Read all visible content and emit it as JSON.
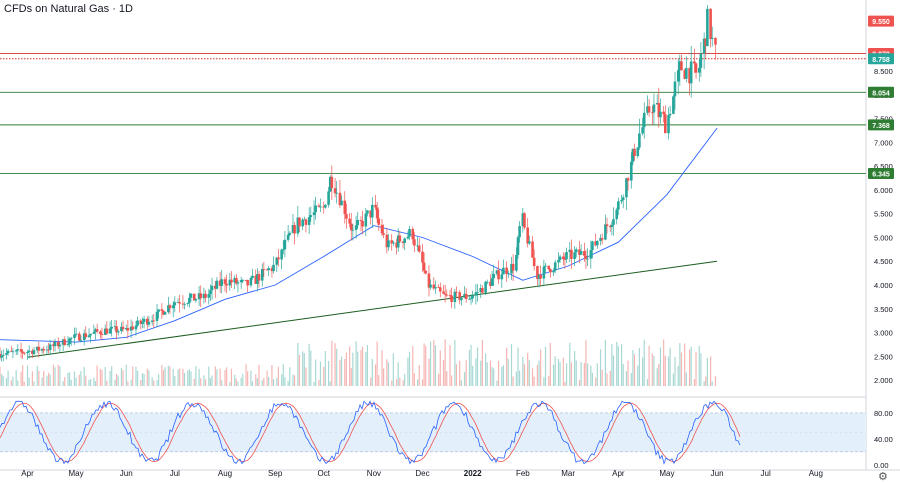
{
  "title": "CFDs on Natural Gas · 1D",
  "colors": {
    "up": "#26a69a",
    "down": "#ef5350",
    "ma": "#2962ff",
    "trendline": "#1b5e20",
    "green_level": "#2e7d32",
    "red_level": "#d32f2f",
    "k_line": "#2962ff",
    "d_line": "#ef5350",
    "osc_band": "#e3f0fc"
  },
  "icons": {
    "settings": "gear-icon"
  },
  "chart_data": {
    "type": "candlestick",
    "price_axis": {
      "ticks": [
        "2.000",
        "2.500",
        "3.000",
        "3.500",
        "4.000",
        "4.500",
        "5.000",
        "5.500",
        "6.000",
        "6.500",
        "7.000",
        "7.500",
        "8.000",
        "8.500"
      ],
      "ylim": [
        1.75,
        9.7
      ]
    },
    "time_axis": {
      "labels": [
        "Apr",
        "May",
        "Jun",
        "Jul",
        "Aug",
        "Sep",
        "Oct",
        "Nov",
        "Dec",
        "2022",
        "Feb",
        "Mar",
        "Apr",
        "May",
        "Jun",
        "Jul",
        "Aug"
      ],
      "start_month": "2021-03-15",
      "end_month": "2022-09-01"
    },
    "price_labels": [
      {
        "value": "9.550",
        "y": 9.55,
        "color": "#ef5350"
      },
      {
        "value": "8.870",
        "y": 8.87,
        "color": "#ef5350"
      },
      {
        "value": "8.758",
        "y": 8.758,
        "color": "#26a69a"
      },
      {
        "value": "8.054",
        "y": 8.054,
        "color": "#2e7d32"
      },
      {
        "value": "7.368",
        "y": 7.368,
        "color": "#2e7d32"
      },
      {
        "value": "6.345",
        "y": 6.345,
        "color": "#2e7d32"
      }
    ],
    "levels": [
      {
        "y": 8.87,
        "style": "solid",
        "color": "#d32f2f"
      },
      {
        "y": 8.758,
        "style": "dotted",
        "color": "#d32f2f"
      },
      {
        "y": 8.054,
        "style": "solid",
        "color": "#2e7d32"
      },
      {
        "y": 7.368,
        "style": "solid",
        "color": "#2e7d32"
      },
      {
        "y": 6.345,
        "style": "solid",
        "color": "#2e7d32"
      }
    ],
    "trendline": {
      "from": [
        "2021-04-01",
        2.48
      ],
      "to": [
        "2022-06-01",
        4.5
      ]
    },
    "close_path": [
      [
        "2021-03-15",
        2.55
      ],
      [
        "2021-04-01",
        2.6
      ],
      [
        "2021-04-15",
        2.68
      ],
      [
        "2021-05-01",
        2.9
      ],
      [
        "2021-05-20",
        3.05
      ],
      [
        "2021-06-01",
        3.05
      ],
      [
        "2021-06-20",
        3.35
      ],
      [
        "2021-07-01",
        3.65
      ],
      [
        "2021-07-20",
        3.75
      ],
      [
        "2021-08-01",
        4.1
      ],
      [
        "2021-08-15",
        4.0
      ],
      [
        "2021-09-01",
        4.4
      ],
      [
        "2021-09-15",
        5.3
      ],
      [
        "2021-10-01",
        5.6
      ],
      [
        "2021-10-06",
        6.3
      ],
      [
        "2021-10-20",
        5.1
      ],
      [
        "2021-11-01",
        5.6
      ],
      [
        "2021-11-10",
        4.8
      ],
      [
        "2021-11-25",
        5.1
      ],
      [
        "2021-12-05",
        4.0
      ],
      [
        "2021-12-15",
        3.75
      ],
      [
        "2022-01-01",
        3.75
      ],
      [
        "2022-01-20",
        4.3
      ],
      [
        "2022-01-27",
        4.4
      ],
      [
        "2022-02-01",
        5.4
      ],
      [
        "2022-02-10",
        4.2
      ],
      [
        "2022-02-20",
        4.4
      ],
      [
        "2022-03-01",
        4.6
      ],
      [
        "2022-03-15",
        4.7
      ],
      [
        "2022-04-01",
        5.6
      ],
      [
        "2022-04-15",
        7.2
      ],
      [
        "2022-04-22",
        7.8
      ],
      [
        "2022-05-01",
        7.4
      ],
      [
        "2022-05-10",
        8.6
      ],
      [
        "2022-05-20",
        8.4
      ],
      [
        "2022-05-27",
        9.55
      ],
      [
        "2022-06-01",
        8.75
      ]
    ],
    "ma_path": [
      [
        "2021-03-15",
        2.85
      ],
      [
        "2021-05-01",
        2.8
      ],
      [
        "2021-06-01",
        2.9
      ],
      [
        "2021-07-01",
        3.25
      ],
      [
        "2021-08-01",
        3.7
      ],
      [
        "2021-09-01",
        4.0
      ],
      [
        "2021-10-01",
        4.6
      ],
      [
        "2021-11-01",
        5.25
      ],
      [
        "2021-12-01",
        5.0
      ],
      [
        "2022-01-01",
        4.6
      ],
      [
        "2022-02-01",
        4.1
      ],
      [
        "2022-03-01",
        4.4
      ],
      [
        "2022-04-01",
        4.9
      ],
      [
        "2022-05-01",
        5.9
      ],
      [
        "2022-06-01",
        7.3
      ]
    ],
    "oscillator": {
      "ticks": [
        "80.00",
        "40.00",
        "0.00"
      ],
      "ylim": [
        -8,
        100
      ],
      "band": [
        20,
        80
      ]
    }
  }
}
